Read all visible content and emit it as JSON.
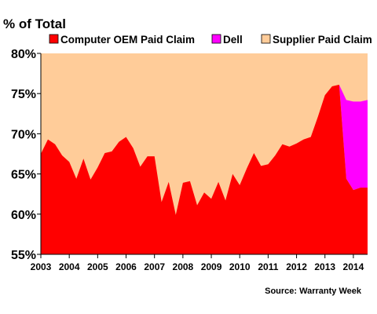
{
  "chart_data": {
    "type": "area",
    "stacking": "percent-of-total",
    "ylabel": "% of Total",
    "source": "Source: Warranty Week",
    "ylim": [
      55,
      80
    ],
    "yticks": [
      "55%",
      "60%",
      "65%",
      "70%",
      "75%",
      "80%"
    ],
    "ytick_values": [
      55,
      60,
      65,
      70,
      75,
      80
    ],
    "xticks": [
      "2003",
      "2004",
      "2005",
      "2006",
      "2007",
      "2008",
      "2009",
      "2010",
      "2011",
      "2012",
      "2013",
      "2014"
    ],
    "xlim": [
      2003,
      2014.5
    ],
    "grid": false,
    "legend_position": "top",
    "legend": [
      {
        "name": "Computer OEM Paid Claim",
        "color": "#ff0000"
      },
      {
        "name": "Dell",
        "color": "#ff00ff"
      },
      {
        "name": "Supplier Paid Claim",
        "color": "#ffcc99"
      }
    ],
    "colors": {
      "oem": "#ff0000",
      "dell": "#ff00ff",
      "supplier": "#ffcc99"
    },
    "x": [
      2003.0,
      2003.25,
      2003.5,
      2003.75,
      2004.0,
      2004.25,
      2004.5,
      2004.75,
      2005.0,
      2005.25,
      2005.5,
      2005.75,
      2006.0,
      2006.25,
      2006.5,
      2006.75,
      2007.0,
      2007.25,
      2007.5,
      2007.75,
      2008.0,
      2008.25,
      2008.5,
      2008.75,
      2009.0,
      2009.25,
      2009.5,
      2009.75,
      2010.0,
      2010.25,
      2010.5,
      2010.75,
      2011.0,
      2011.25,
      2011.5,
      2011.75,
      2012.0,
      2012.25,
      2012.5,
      2012.75,
      2013.0,
      2013.25,
      2013.5,
      2013.75,
      2014.0,
      2014.25,
      2014.5
    ],
    "series": [
      {
        "name": "Computer OEM Paid Claim",
        "values": [
          67.5,
          69.3,
          68.7,
          67.3,
          66.5,
          64.4,
          66.9,
          64.3,
          65.8,
          67.6,
          67.8,
          69.0,
          69.6,
          68.2,
          65.9,
          67.2,
          67.2,
          61.5,
          64.0,
          59.9,
          63.9,
          64.1,
          61.1,
          62.7,
          61.9,
          64.0,
          61.7,
          65.0,
          63.6,
          65.7,
          67.6,
          66.0,
          66.2,
          67.3,
          68.7,
          68.4,
          68.8,
          69.3,
          69.6,
          72.1,
          74.8,
          75.9,
          76.1,
          64.4,
          63.0,
          63.3,
          63.3
        ]
      },
      {
        "name": "Dell",
        "values": [
          0,
          0,
          0,
          0,
          0,
          0,
          0,
          0,
          0,
          0,
          0,
          0,
          0,
          0,
          0,
          0,
          0,
          0,
          0,
          0,
          0,
          0,
          0,
          0,
          0,
          0,
          0,
          0,
          0,
          0,
          0,
          0,
          0,
          0,
          0,
          0,
          0,
          0,
          0,
          0,
          0,
          0,
          0,
          9.8,
          11.0,
          10.7,
          10.9
        ]
      },
      {
        "name": "Supplier Paid Claim",
        "values": [
          32.5,
          30.7,
          31.3,
          32.7,
          33.5,
          35.6,
          33.1,
          35.7,
          34.2,
          32.4,
          32.2,
          31.0,
          30.4,
          31.8,
          34.1,
          32.8,
          32.8,
          38.5,
          36.0,
          40.1,
          36.1,
          35.9,
          38.9,
          37.3,
          38.1,
          36.0,
          38.3,
          35.0,
          36.4,
          34.3,
          32.4,
          34.0,
          33.8,
          32.7,
          31.3,
          31.6,
          31.2,
          30.7,
          30.4,
          27.9,
          25.2,
          24.1,
          23.9,
          25.8,
          26.0,
          26.0,
          25.8
        ]
      }
    ]
  }
}
